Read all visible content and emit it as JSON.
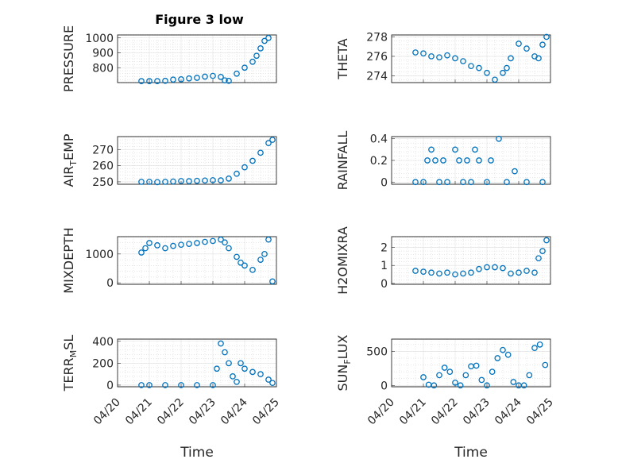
{
  "figure": {
    "title": "Figure 3 low",
    "marker_color": "#0072bd",
    "x_axis_dates": [
      "2021-04-20",
      "2021-04-21",
      "2021-04-22",
      "2021-04-23",
      "2021-04-24",
      "2021-04-25"
    ],
    "x_tick_labels": [
      "04/20",
      "04/21",
      "04/22",
      "04/23",
      "04/24",
      "04/25"
    ],
    "x_label": "Time"
  },
  "chart_data": [
    {
      "type": "scatter",
      "title": "Figure 3 low",
      "ylabel": "PRESSURE",
      "xlim": [
        "2021-04-20",
        "2021-04-25"
      ],
      "ylim": [
        700,
        1020
      ],
      "yticks": [
        800,
        900,
        1000
      ],
      "ytick_labels": [
        "800",
        "900",
        "1000"
      ],
      "grid": true,
      "marker": "o",
      "x": [
        "2021-04-20T18:00",
        "2021-04-21T00:00",
        "2021-04-21T06:00",
        "2021-04-21T12:00",
        "2021-04-21T18:00",
        "2021-04-22T00:00",
        "2021-04-22T06:00",
        "2021-04-22T12:00",
        "2021-04-22T18:00",
        "2021-04-23T00:00",
        "2021-04-23T06:00",
        "2021-04-23T09:00",
        "2021-04-23T12:00",
        "2021-04-23T18:00",
        "2021-04-24T00:00",
        "2021-04-24T06:00",
        "2021-04-24T09:00",
        "2021-04-24T12:00",
        "2021-04-24T15:00",
        "2021-04-24T18:00"
      ],
      "y": [
        710,
        710,
        710,
        712,
        720,
        722,
        728,
        732,
        740,
        745,
        738,
        715,
        712,
        760,
        800,
        840,
        880,
        930,
        980,
        1000
      ]
    },
    {
      "type": "scatter",
      "title": "",
      "ylabel": "THETA",
      "xlim": [
        "2021-04-20",
        "2021-04-25"
      ],
      "ylim": [
        273.3,
        278.2
      ],
      "yticks": [
        274,
        276,
        278
      ],
      "ytick_labels": [
        "274",
        "276",
        "278"
      ],
      "grid": true,
      "marker": "o",
      "x": [
        "2021-04-20T18:00",
        "2021-04-21T00:00",
        "2021-04-21T06:00",
        "2021-04-21T12:00",
        "2021-04-21T18:00",
        "2021-04-22T00:00",
        "2021-04-22T06:00",
        "2021-04-22T12:00",
        "2021-04-22T18:00",
        "2021-04-23T00:00",
        "2021-04-23T06:00",
        "2021-04-23T12:00",
        "2021-04-23T15:00",
        "2021-04-23T18:00",
        "2021-04-24T00:00",
        "2021-04-24T06:00",
        "2021-04-24T12:00",
        "2021-04-24T15:00",
        "2021-04-24T18:00",
        "2021-04-24T21:00"
      ],
      "y": [
        276.4,
        276.3,
        276.0,
        275.9,
        276.1,
        275.8,
        275.5,
        275.0,
        274.8,
        274.3,
        273.6,
        274.3,
        274.8,
        275.8,
        277.3,
        276.8,
        276.0,
        275.8,
        277.2,
        278.0
      ]
    },
    {
      "type": "scatter",
      "title": "",
      "ylabel": "AIR_TEMP",
      "xlim": [
        "2021-04-20",
        "2021-04-25"
      ],
      "ylim": [
        248.5,
        278
      ],
      "yticks": [
        250,
        260,
        270
      ],
      "ytick_labels": [
        "250",
        "260",
        "270"
      ],
      "grid": true,
      "marker": "o",
      "x": [
        "2021-04-20T18:00",
        "2021-04-21T00:00",
        "2021-04-21T06:00",
        "2021-04-21T12:00",
        "2021-04-21T18:00",
        "2021-04-22T00:00",
        "2021-04-22T06:00",
        "2021-04-22T12:00",
        "2021-04-22T18:00",
        "2021-04-23T00:00",
        "2021-04-23T06:00",
        "2021-04-23T12:00",
        "2021-04-23T18:00",
        "2021-04-24T00:00",
        "2021-04-24T06:00",
        "2021-04-24T12:00",
        "2021-04-24T18:00",
        "2021-04-24T21:00"
      ],
      "y": [
        250,
        250,
        249.8,
        250,
        250.2,
        250.5,
        250.4,
        250.6,
        250.8,
        251,
        250.9,
        252,
        255,
        259,
        263,
        268,
        274,
        276
      ]
    },
    {
      "type": "scatter",
      "title": "",
      "ylabel": "RAINFALL",
      "xlim": [
        "2021-04-20",
        "2021-04-25"
      ],
      "ylim": [
        -0.02,
        0.42
      ],
      "yticks": [
        0,
        0.2,
        0.4
      ],
      "ytick_labels": [
        "0",
        "0.2",
        "0.4"
      ],
      "grid": true,
      "marker": "o",
      "x": [
        "2021-04-20T18:00",
        "2021-04-21T00:00",
        "2021-04-21T03:00",
        "2021-04-21T06:00",
        "2021-04-21T09:00",
        "2021-04-21T12:00",
        "2021-04-21T15:00",
        "2021-04-21T18:00",
        "2021-04-22T00:00",
        "2021-04-22T03:00",
        "2021-04-22T06:00",
        "2021-04-22T09:00",
        "2021-04-22T12:00",
        "2021-04-22T15:00",
        "2021-04-22T18:00",
        "2021-04-23T00:00",
        "2021-04-23T03:00",
        "2021-04-23T09:00",
        "2021-04-23T15:00",
        "2021-04-23T21:00",
        "2021-04-24T06:00",
        "2021-04-24T18:00"
      ],
      "y": [
        0,
        0,
        0.2,
        0.3,
        0.2,
        0,
        0.2,
        0,
        0.3,
        0.2,
        0,
        0.2,
        0,
        0.3,
        0.2,
        0,
        0.2,
        0.4,
        0,
        0.1,
        0,
        0
      ]
    },
    {
      "type": "scatter",
      "title": "",
      "ylabel": "MIXDEPTH",
      "xlim": [
        "2021-04-20",
        "2021-04-25"
      ],
      "ylim": [
        -50,
        1600
      ],
      "yticks": [
        0,
        1000
      ],
      "ytick_labels": [
        "0",
        "1000"
      ],
      "grid": true,
      "marker": "o",
      "x": [
        "2021-04-20T18:00",
        "2021-04-20T21:00",
        "2021-04-21T00:00",
        "2021-04-21T06:00",
        "2021-04-21T12:00",
        "2021-04-21T18:00",
        "2021-04-22T00:00",
        "2021-04-22T06:00",
        "2021-04-22T12:00",
        "2021-04-22T18:00",
        "2021-04-23T00:00",
        "2021-04-23T06:00",
        "2021-04-23T09:00",
        "2021-04-23T12:00",
        "2021-04-23T18:00",
        "2021-04-23T21:00",
        "2021-04-24T00:00",
        "2021-04-24T06:00",
        "2021-04-24T12:00",
        "2021-04-24T15:00",
        "2021-04-24T18:00",
        "2021-04-24T21:00"
      ],
      "y": [
        1050,
        1200,
        1380,
        1300,
        1200,
        1280,
        1320,
        1350,
        1380,
        1420,
        1450,
        1500,
        1400,
        1200,
        900,
        700,
        600,
        450,
        800,
        1000,
        1500,
        50
      ]
    },
    {
      "type": "scatter",
      "title": "",
      "ylabel": "H2OMIXRA",
      "xlim": [
        "2021-04-20",
        "2021-04-25"
      ],
      "ylim": [
        -0.05,
        2.6
      ],
      "yticks": [
        0,
        1,
        2
      ],
      "ytick_labels": [
        "0",
        "1",
        "2"
      ],
      "grid": true,
      "marker": "o",
      "x": [
        "2021-04-20T18:00",
        "2021-04-21T00:00",
        "2021-04-21T06:00",
        "2021-04-21T12:00",
        "2021-04-21T18:00",
        "2021-04-22T00:00",
        "2021-04-22T06:00",
        "2021-04-22T12:00",
        "2021-04-22T18:00",
        "2021-04-23T00:00",
        "2021-04-23T06:00",
        "2021-04-23T12:00",
        "2021-04-23T18:00",
        "2021-04-24T00:00",
        "2021-04-24T06:00",
        "2021-04-24T12:00",
        "2021-04-24T15:00",
        "2021-04-24T18:00",
        "2021-04-24T21:00"
      ],
      "y": [
        0.7,
        0.65,
        0.6,
        0.55,
        0.6,
        0.5,
        0.55,
        0.6,
        0.8,
        0.9,
        0.9,
        0.85,
        0.55,
        0.6,
        0.7,
        0.6,
        1.4,
        1.8,
        2.4
      ]
    },
    {
      "type": "scatter",
      "title": "",
      "ylabel": "TERR_MSL",
      "xlim": [
        "2021-04-20",
        "2021-04-25"
      ],
      "ylim": [
        -15,
        420
      ],
      "yticks": [
        0,
        200,
        400
      ],
      "ytick_labels": [
        "0",
        "200",
        "400"
      ],
      "grid": true,
      "marker": "o",
      "x": [
        "2021-04-20T18:00",
        "2021-04-21T00:00",
        "2021-04-21T12:00",
        "2021-04-22T00:00",
        "2021-04-22T12:00",
        "2021-04-23T00:00",
        "2021-04-23T03:00",
        "2021-04-23T06:00",
        "2021-04-23T09:00",
        "2021-04-23T12:00",
        "2021-04-23T15:00",
        "2021-04-23T18:00",
        "2021-04-23T21:00",
        "2021-04-24T00:00",
        "2021-04-24T06:00",
        "2021-04-24T12:00",
        "2021-04-24T18:00",
        "2021-04-24T21:00"
      ],
      "y": [
        0,
        0,
        0,
        0,
        0,
        0,
        150,
        380,
        300,
        200,
        80,
        30,
        200,
        150,
        120,
        100,
        50,
        20
      ]
    },
    {
      "type": "scatter",
      "title": "",
      "ylabel": "SUN_FLUX",
      "xlim": [
        "2021-04-20",
        "2021-04-25"
      ],
      "ylim": [
        -20,
        680
      ],
      "yticks": [
        0,
        500
      ],
      "ytick_labels": [
        "0",
        "500"
      ],
      "grid": true,
      "marker": "o",
      "x": [
        "2021-04-21T00:00",
        "2021-04-21T04:00",
        "2021-04-21T08:00",
        "2021-04-21T12:00",
        "2021-04-21T16:00",
        "2021-04-21T20:00",
        "2021-04-22T00:00",
        "2021-04-22T04:00",
        "2021-04-22T08:00",
        "2021-04-22T12:00",
        "2021-04-22T16:00",
        "2021-04-22T20:00",
        "2021-04-23T00:00",
        "2021-04-23T04:00",
        "2021-04-23T08:00",
        "2021-04-23T12:00",
        "2021-04-23T16:00",
        "2021-04-23T20:00",
        "2021-04-24T00:00",
        "2021-04-24T04:00",
        "2021-04-24T08:00",
        "2021-04-24T12:00",
        "2021-04-24T16:00",
        "2021-04-24T20:00"
      ],
      "y": [
        120,
        10,
        0,
        150,
        260,
        200,
        40,
        0,
        150,
        280,
        290,
        80,
        0,
        200,
        400,
        520,
        450,
        50,
        0,
        0,
        150,
        550,
        600,
        300
      ]
    }
  ]
}
